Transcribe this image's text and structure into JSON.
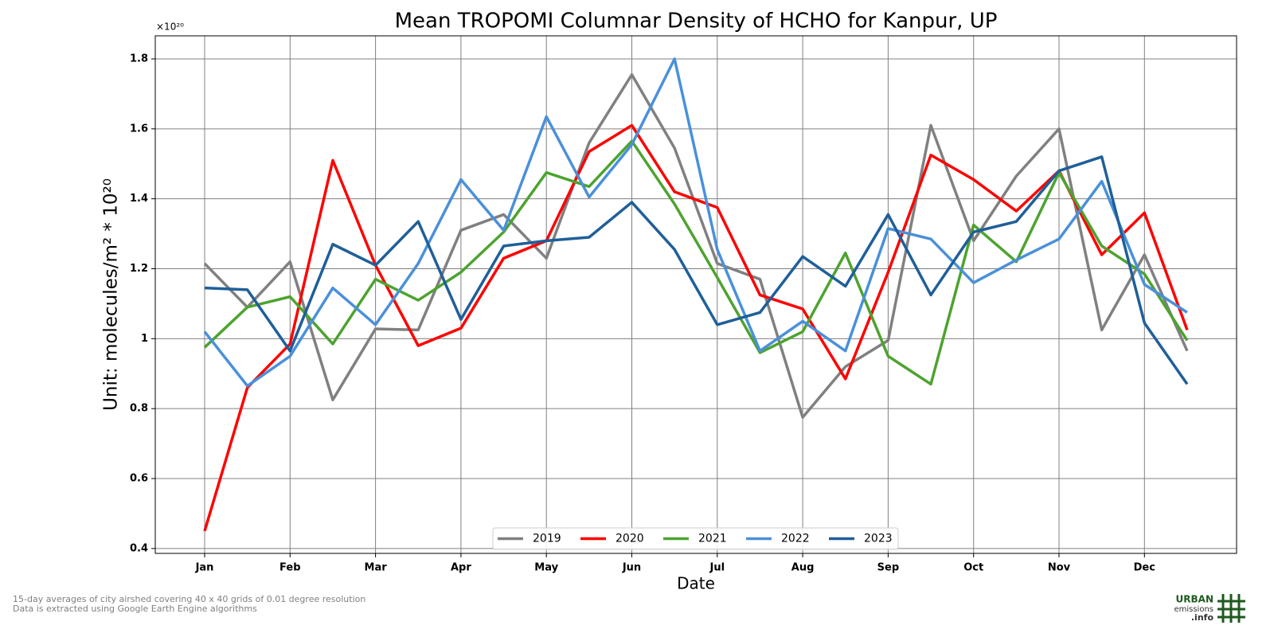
{
  "chart_data": {
    "type": "line",
    "title": "Mean TROPOMI Columnar Density of HCHO for Kanpur, UP",
    "xlabel": "Date",
    "ylabel": "Unit: molecules/m² * 10²⁰",
    "y_offset_label": "×10²⁰",
    "categories": [
      "Jan",
      null,
      "Feb",
      null,
      "Mar",
      null,
      "Apr",
      null,
      "May",
      null,
      "Jun",
      null,
      "Jul",
      null,
      "Aug",
      null,
      "Sep",
      null,
      "Oct",
      null,
      "Nov",
      null,
      "Dec",
      null
    ],
    "ylim": [
      0.386,
      1.866
    ],
    "yticks": [
      0.4,
      0.6,
      0.8,
      1.0,
      1.2,
      1.4,
      1.6,
      1.8
    ],
    "grid": true,
    "legend_position": "bottom",
    "series": [
      {
        "name": "2019",
        "color": "#808080",
        "values": [
          1.215,
          1.09,
          1.22,
          0.825,
          1.028,
          1.025,
          1.31,
          1.355,
          1.23,
          1.56,
          1.755,
          1.545,
          1.215,
          1.17,
          0.775,
          0.92,
          0.995,
          1.61,
          1.28,
          1.465,
          1.6,
          1.025,
          1.24,
          0.965
        ]
      },
      {
        "name": "2020",
        "color": "#ff0000",
        "values": [
          0.45,
          0.86,
          0.985,
          1.51,
          1.21,
          0.98,
          1.03,
          1.23,
          1.28,
          1.535,
          1.61,
          1.42,
          1.375,
          1.125,
          1.085,
          0.885,
          1.19,
          1.525,
          1.455,
          1.365,
          1.48,
          1.24,
          1.36,
          1.025
        ]
      },
      {
        "name": "2021",
        "color": "#4da32f",
        "values": [
          0.975,
          1.09,
          1.12,
          0.985,
          1.17,
          1.11,
          1.19,
          1.305,
          1.475,
          1.435,
          1.565,
          1.385,
          1.175,
          0.96,
          1.02,
          1.245,
          0.95,
          0.87,
          1.325,
          1.22,
          1.475,
          1.265,
          1.185,
          0.995
        ]
      },
      {
        "name": "2022",
        "color": "#4a90d9",
        "values": [
          1.02,
          0.865,
          0.95,
          1.145,
          1.04,
          1.215,
          1.455,
          1.31,
          1.635,
          1.405,
          1.555,
          1.8,
          1.255,
          0.965,
          1.05,
          0.965,
          1.315,
          1.285,
          1.16,
          1.225,
          1.285,
          1.45,
          1.155,
          1.075
        ]
      },
      {
        "name": "2023",
        "color": "#1f5f99",
        "values": [
          1.145,
          1.14,
          0.965,
          1.27,
          1.21,
          1.335,
          1.055,
          1.265,
          1.28,
          1.29,
          1.39,
          1.255,
          1.04,
          1.075,
          1.235,
          1.15,
          1.355,
          1.125,
          1.305,
          1.335,
          1.48,
          1.52,
          1.045,
          0.87
        ]
      }
    ]
  },
  "footnotes": [
    "15-day averages of city airshed covering 40 x 40 grids of 0.01 degree resolution",
    "Data is extracted using Google Earth Engine algorithms"
  ],
  "logo": {
    "line1": "URBAN",
    "line2": "emissions",
    "line3": ".info"
  }
}
